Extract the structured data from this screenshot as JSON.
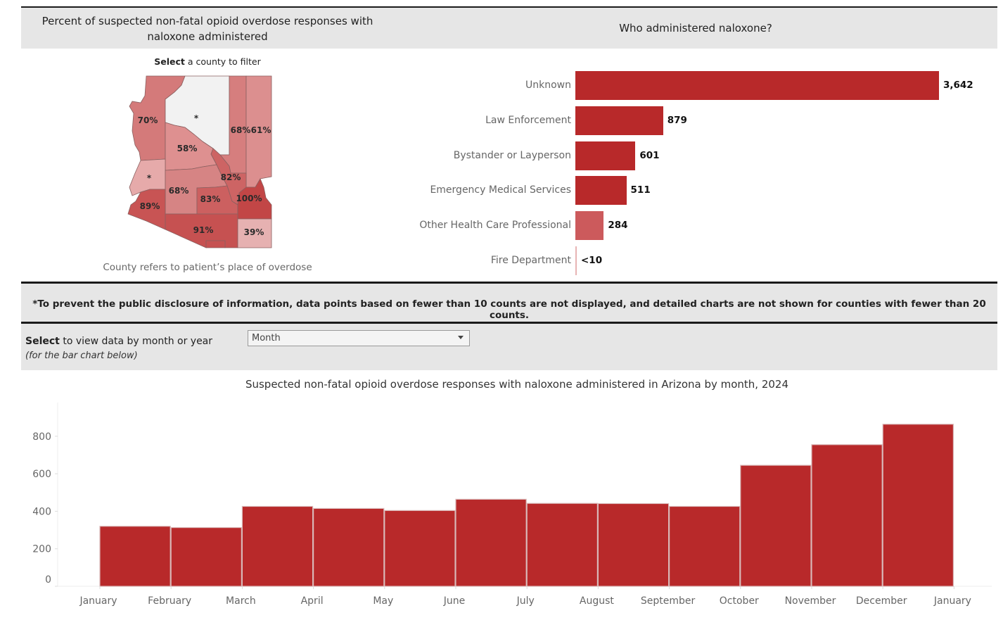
{
  "map_panel": {
    "title": "Percent of suspected non-fatal opioid overdose responses with naloxone administered",
    "select_bold": "Select",
    "select_rest": " a county to filter",
    "note": "County refers to patient’s place of overdose",
    "counties": [
      {
        "id": "mohave",
        "label": "70%",
        "color": "#d47a7a"
      },
      {
        "id": "coconino",
        "label": "*",
        "color": "#f2f2f2"
      },
      {
        "id": "navajo",
        "label": "68%",
        "color": "#d67e7e"
      },
      {
        "id": "apache",
        "label": "61%",
        "color": "#dc8f8f"
      },
      {
        "id": "yavapai",
        "label": "58%",
        "color": "#de9090"
      },
      {
        "id": "la-paz",
        "label": "*",
        "color": "#e6aaaa"
      },
      {
        "id": "maricopa",
        "label": "68%",
        "color": "#d68484"
      },
      {
        "id": "gila",
        "label": "82%",
        "color": "#cd6464"
      },
      {
        "id": "pinal",
        "label": "83%",
        "color": "#cc6060"
      },
      {
        "id": "greenlee",
        "label": "100%",
        "color": "#c24646"
      },
      {
        "id": "graham",
        "label": "100%",
        "color": "#c24646"
      },
      {
        "id": "yuma",
        "label": "89%",
        "color": "#c85454"
      },
      {
        "id": "pima",
        "label": "91%",
        "color": "#c65151"
      },
      {
        "id": "santa-cruz",
        "label": "91%",
        "color": "#c65151"
      },
      {
        "id": "cochise",
        "label": "39%",
        "color": "#e6b1b1"
      }
    ]
  },
  "who_panel": {
    "title": "Who administered naloxone?"
  },
  "notice": "*To prevent the public disclosure of information, data points based on fewer than 10 counts are not displayed, and detailed charts are not shown for counties with fewer than 20 counts.",
  "view_select": {
    "label_bold": "Select",
    "label_rest": " to view data by month or year",
    "sublabel": "(for the bar chart below)",
    "value": "Month"
  },
  "colors": {
    "bar_primary": "#b8292a",
    "bar_light": "#cc5a5c"
  },
  "chart_data": [
    {
      "type": "bar",
      "orientation": "horizontal",
      "title": "Who administered naloxone?",
      "categories": [
        "Unknown",
        "Law Enforcement",
        "Bystander or Layperson",
        "Emergency Medical Services",
        "Other Health Care Professional",
        "Fire Department"
      ],
      "values": [
        3642,
        879,
        601,
        511,
        284,
        5
      ],
      "value_labels": [
        "3,642",
        "879",
        "601",
        "511",
        "284",
        "<10"
      ],
      "bar_colors": [
        "#b8292a",
        "#b8292a",
        "#b8292a",
        "#b8292a",
        "#cc5a5c",
        "#e8b4b4"
      ],
      "xlim": [
        0,
        3642
      ]
    },
    {
      "type": "bar",
      "orientation": "vertical",
      "title": "Suspected non-fatal opioid overdose responses with naloxone administered in Arizona by month, 2024",
      "xlabel": "",
      "ylabel": "",
      "categories": [
        "January",
        "February",
        "March",
        "April",
        "May",
        "June",
        "July",
        "August",
        "September",
        "October",
        "November",
        "December"
      ],
      "tick_labels": [
        "January",
        "February",
        "March",
        "April",
        "May",
        "June",
        "July",
        "August",
        "September",
        "October",
        "November",
        "December",
        "January"
      ],
      "values": [
        320,
        313,
        426,
        415,
        404,
        464,
        442,
        441,
        426,
        645,
        755,
        864
      ],
      "yticks": [
        0,
        200,
        400,
        600,
        800
      ],
      "ylim": [
        0,
        900
      ],
      "grid": false
    }
  ]
}
